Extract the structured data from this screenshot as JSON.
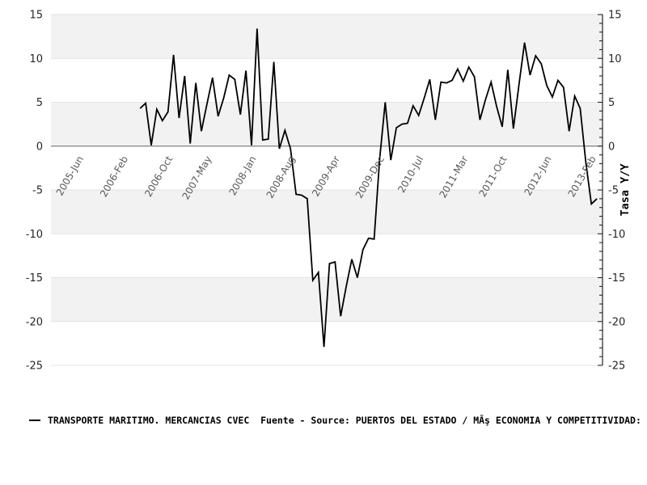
{
  "window": {
    "background": "#ffffff"
  },
  "legend": {
    "marker": "black-line-sample",
    "text": "TRANSPORTE MARITIMO. MERCANCIAS CVEC  Fuente - Source: PUERTOS DEL ESTADO / MÂş ECONOMIA Y COMPETITIVIDAD:"
  },
  "chart_data": {
    "type": "line",
    "title": "",
    "xlabel": "",
    "ylabel": "Tasa Y/Y",
    "ylabel_position": "right",
    "ylim": [
      -25,
      15
    ],
    "y_ticks": [
      15,
      10,
      5,
      0,
      -5,
      -10,
      -15,
      -20,
      -25
    ],
    "y_minor_tick_step": 1,
    "grid": "horizontal-bands",
    "background_bands": {
      "step": 5,
      "band_colors": [
        "#f2f2f2",
        "#ffffff"
      ]
    },
    "legend_position": "bottom-left",
    "x_axis_start": "2005-01",
    "x_axis_end": "2013-04",
    "x_ticks": [
      {
        "label": "2005-Jun",
        "date": "2005-06"
      },
      {
        "label": "2006-Feb",
        "date": "2006-02"
      },
      {
        "label": "2006-Oct",
        "date": "2006-10"
      },
      {
        "label": "2007-May",
        "date": "2007-05"
      },
      {
        "label": "2008-Jan",
        "date": "2008-01"
      },
      {
        "label": "2008-Aug",
        "date": "2008-08"
      },
      {
        "label": "2009-Apr",
        "date": "2009-04"
      },
      {
        "label": "2009-Dec",
        "date": "2009-12"
      },
      {
        "label": "2010-Jul",
        "date": "2010-07"
      },
      {
        "label": "2011-Mar",
        "date": "2011-03"
      },
      {
        "label": "2011-Oct",
        "date": "2011-10"
      },
      {
        "label": "2012-Jun",
        "date": "2012-06"
      },
      {
        "label": "2013-Feb",
        "date": "2013-02"
      }
    ],
    "series": [
      {
        "name": "TRANSPORTE MARITIMO. MERCANCIAS CVEC",
        "color": "#000000",
        "frequency": "monthly",
        "x_start": "2006-05",
        "x_end": "2013-03",
        "values": [
          4.3,
          4.9,
          0.1,
          4.2,
          2.9,
          3.9,
          10.4,
          3.2,
          8.0,
          0.3,
          7.2,
          1.7,
          4.8,
          7.8,
          3.4,
          5.5,
          8.1,
          7.6,
          3.6,
          8.6,
          0.1,
          13.4,
          0.7,
          0.8,
          9.6,
          -0.3,
          1.8,
          -0.3,
          -5.5,
          -5.6,
          -6.0,
          -15.3,
          -14.4,
          -22.9,
          -13.4,
          -13.2,
          -19.4,
          -16.0,
          -12.9,
          -15.0,
          -11.8,
          -10.5,
          -10.6,
          -1.5,
          5.0,
          -1.6,
          2.1,
          2.5,
          2.6,
          4.6,
          3.5,
          5.5,
          7.6,
          3.0,
          7.3,
          7.2,
          7.5,
          8.8,
          7.4,
          9.0,
          7.9,
          3.0,
          5.3,
          7.3,
          4.5,
          2.2,
          8.7,
          2.0,
          7.0,
          11.8,
          8.1,
          10.3,
          9.4,
          6.9,
          5.6,
          7.5,
          6.7,
          1.7,
          5.7,
          4.3,
          -1.8,
          -6.6,
          -6.0
        ]
      }
    ],
    "colors": {
      "band_gray": "#f2f2f2",
      "band_white": "#ffffff",
      "band_edge": "#e3e3e3",
      "zero_line": "#808080",
      "line": "#000000",
      "y_tick_label": "#262626",
      "x_tick_label": "#595959",
      "right_spine": "#262626"
    }
  }
}
